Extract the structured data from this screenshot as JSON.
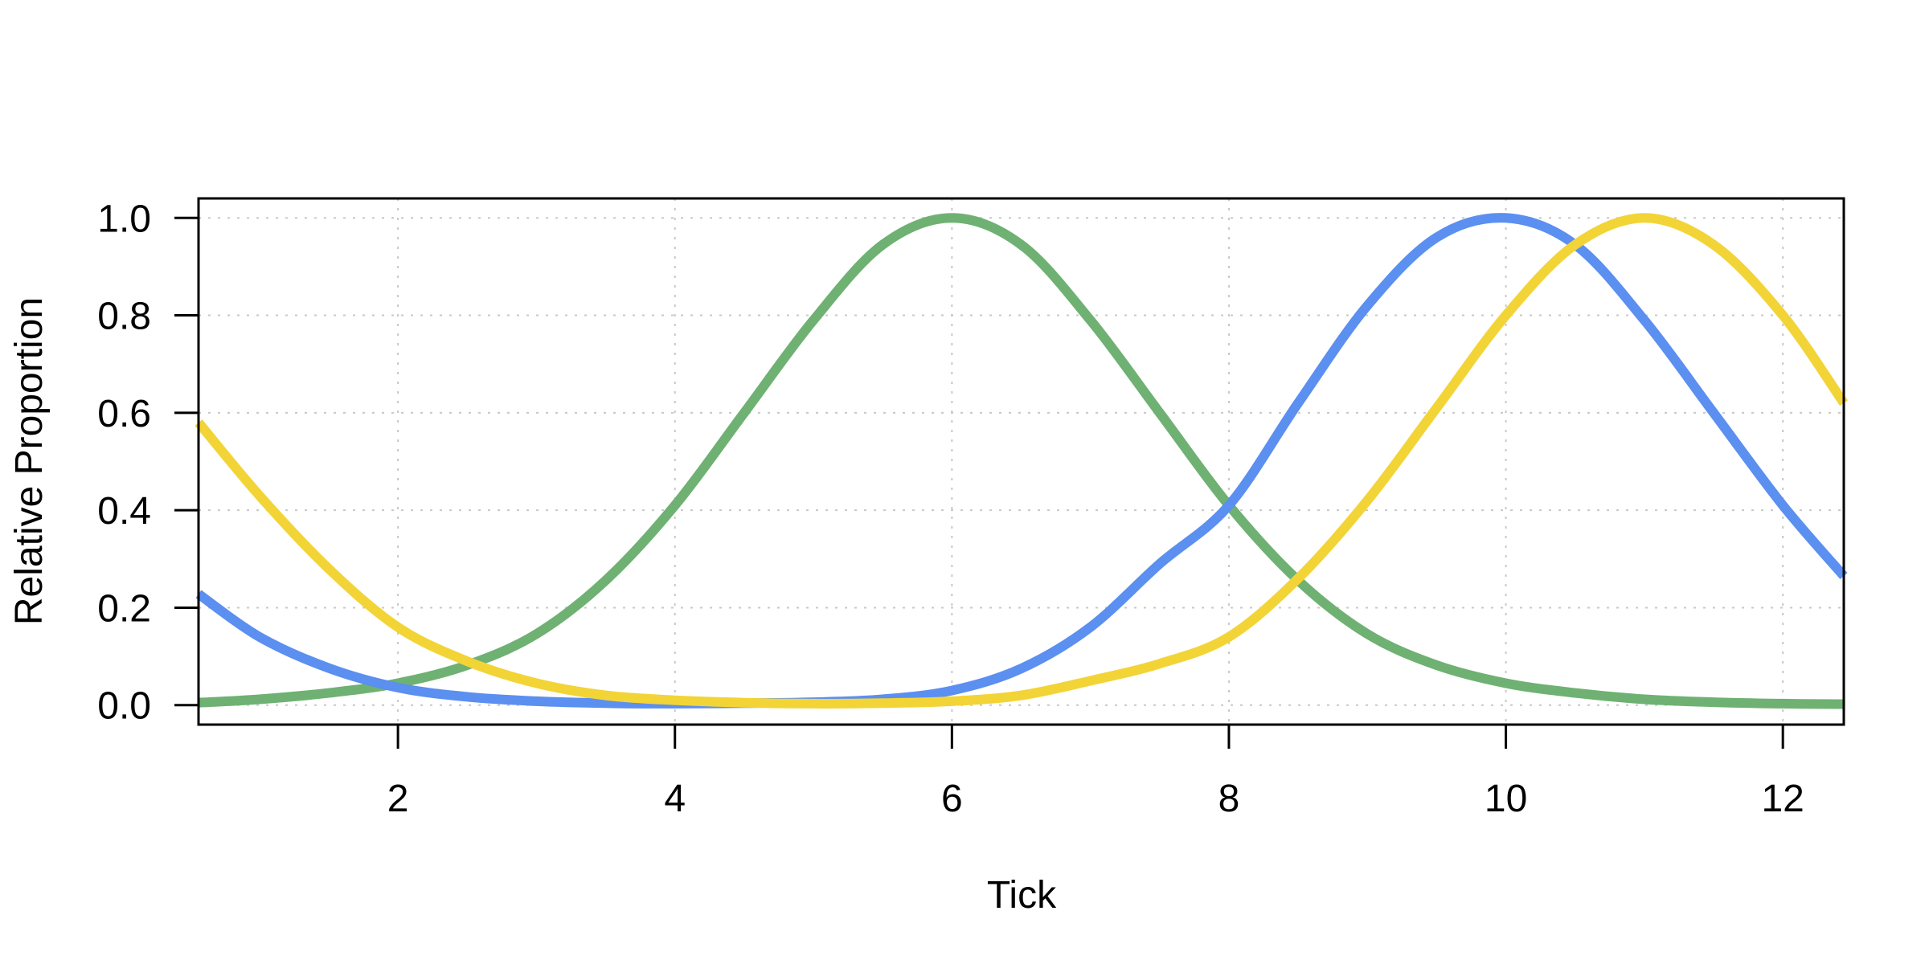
{
  "chart_data": {
    "type": "line",
    "title": "",
    "xlabel": "Tick",
    "ylabel": "Relative Proportion",
    "xlim": [
      0.56,
      12.44
    ],
    "ylim": [
      -0.04,
      1.04
    ],
    "grid": true,
    "legend": "none",
    "x_ticks": [
      2,
      4,
      6,
      8,
      10,
      12
    ],
    "x_tick_labels": [
      "2",
      "4",
      "6",
      "8",
      "10",
      "12"
    ],
    "y_ticks": [
      0.0,
      0.2,
      0.4,
      0.6,
      0.8,
      1.0
    ],
    "y_tick_labels": [
      "0.0",
      "0.2",
      "0.4",
      "0.6",
      "0.8",
      "1.0"
    ],
    "x": [
      0.56,
      1,
      1.5,
      2,
      2.5,
      3,
      3.5,
      4,
      4.5,
      5,
      5.5,
      6,
      6.5,
      7,
      7.5,
      8,
      8.5,
      9,
      9.5,
      10,
      10.5,
      11,
      11.5,
      12,
      12.44
    ],
    "series": [
      {
        "color": "#6fb172",
        "values": [
          0.005,
          0.012,
          0.025,
          0.045,
          0.082,
          0.146,
          0.256,
          0.41,
          0.6,
          0.79,
          0.945,
          1.0,
          0.945,
          0.79,
          0.6,
          0.41,
          0.256,
          0.146,
          0.082,
          0.045,
          0.025,
          0.012,
          0.006,
          0.003,
          0.002
        ]
      },
      {
        "color": "#5b8ff0",
        "values": [
          0.228,
          0.14,
          0.076,
          0.036,
          0.017,
          0.008,
          0.004,
          0.003,
          0.004,
          0.006,
          0.012,
          0.03,
          0.075,
          0.16,
          0.29,
          0.41,
          0.62,
          0.82,
          0.96,
          1.0,
          0.945,
          0.79,
          0.6,
          0.41,
          0.265
        ]
      },
      {
        "color": "#f2d437",
        "values": [
          0.58,
          0.43,
          0.28,
          0.16,
          0.09,
          0.045,
          0.02,
          0.01,
          0.005,
          0.003,
          0.004,
          0.008,
          0.02,
          0.05,
          0.085,
          0.14,
          0.26,
          0.42,
          0.61,
          0.8,
          0.945,
          1.0,
          0.945,
          0.8,
          0.62
        ]
      }
    ]
  }
}
